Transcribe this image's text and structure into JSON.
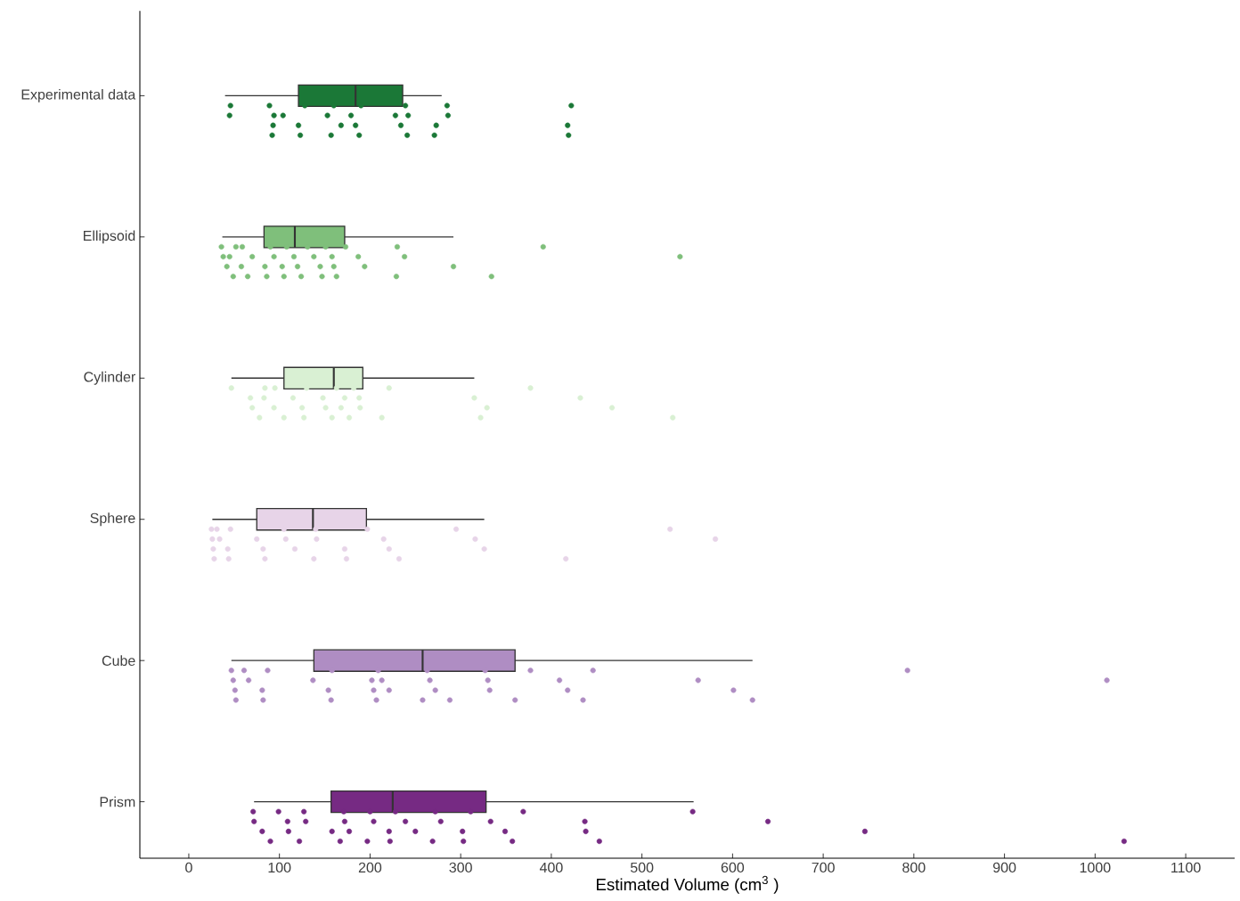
{
  "chart_data": {
    "type": "box",
    "orientation": "horizontal",
    "xlabel": "Estimated Volume (cm$^{3}$ )",
    "categories": [
      "Experimental  data",
      "Ellipsoid",
      "Cylinder",
      "Sphere",
      "Cube",
      "Prism"
    ],
    "colors": [
      "#1b7837",
      "#7fbf7b",
      "#d9f0d3",
      "#e7d4e8",
      "#af8dc3",
      "#762a83"
    ],
    "boxes": [
      {
        "low": 40,
        "q1": 121,
        "median": 184,
        "q3": 236,
        "high": 279
      },
      {
        "low": 37,
        "q1": 83,
        "median": 117,
        "q3": 172,
        "high": 292
      },
      {
        "low": 47,
        "q1": 105,
        "median": 160,
        "q3": 192,
        "high": 315
      },
      {
        "low": 26,
        "q1": 75,
        "median": 137,
        "q3": 196,
        "high": 326
      },
      {
        "low": 47,
        "q1": 138,
        "median": 258,
        "q3": 360,
        "high": 622
      },
      {
        "low": 72,
        "q1": 157,
        "median": 225,
        "q3": 328,
        "high": 557
      }
    ],
    "series": [
      {
        "type": "scatter",
        "color": "#1b7837",
        "x": [
          "Experimental  data",
          "Experimental  data",
          "Experimental  data",
          "Experimental  data",
          "Experimental  data",
          "Experimental  data",
          "Experimental  data",
          "Experimental  data",
          "Experimental  data",
          "Experimental  data",
          "Experimental  data",
          "Experimental  data",
          "Experimental  data",
          "Experimental  data",
          "Experimental  data",
          "Experimental  data",
          "Experimental  data",
          "Experimental  data",
          "Experimental  data",
          "Experimental  data",
          "Experimental  data",
          "Experimental  data",
          "Experimental  data",
          "Experimental  data",
          "Experimental  data",
          "Experimental  data",
          "Experimental  data",
          "Experimental  data",
          "Experimental  data",
          "Experimental  data"
        ],
        "values": [
          46,
          45,
          93,
          92,
          89,
          104,
          121,
          123,
          128,
          153,
          168,
          157,
          160,
          179,
          184,
          188,
          190,
          228,
          234,
          241,
          239,
          242,
          273,
          271,
          285,
          286,
          418,
          419,
          422,
          94
        ]
      },
      {
        "type": "scatter",
        "color": "#7fbf7b",
        "x": [
          "Ellipsoid",
          "Ellipsoid",
          "Ellipsoid",
          "Ellipsoid",
          "Ellipsoid",
          "Ellipsoid",
          "Ellipsoid",
          "Ellipsoid",
          "Ellipsoid",
          "Ellipsoid",
          "Ellipsoid",
          "Ellipsoid",
          "Ellipsoid",
          "Ellipsoid",
          "Ellipsoid",
          "Ellipsoid",
          "Ellipsoid",
          "Ellipsoid",
          "Ellipsoid",
          "Ellipsoid",
          "Ellipsoid",
          "Ellipsoid",
          "Ellipsoid",
          "Ellipsoid",
          "Ellipsoid",
          "Ellipsoid",
          "Ellipsoid",
          "Ellipsoid",
          "Ellipsoid",
          "Ellipsoid",
          "Ellipsoid",
          "Ellipsoid",
          "Ellipsoid",
          "Ellipsoid",
          "Ellipsoid",
          "Ellipsoid",
          "Ellipsoid",
          "Ellipsoid"
        ],
        "values": [
          36,
          38,
          42,
          49,
          52,
          45,
          58,
          65,
          59,
          70,
          84,
          86,
          90,
          94,
          103,
          105,
          108,
          116,
          120,
          124,
          131,
          138,
          145,
          147,
          151,
          158,
          160,
          163,
          173,
          187,
          194,
          229,
          230,
          238,
          292,
          334,
          391,
          542
        ]
      },
      {
        "type": "scatter",
        "color": "#d9f0d3",
        "x": [
          "Cylinder",
          "Cylinder",
          "Cylinder",
          "Cylinder",
          "Cylinder",
          "Cylinder",
          "Cylinder",
          "Cylinder",
          "Cylinder",
          "Cylinder",
          "Cylinder",
          "Cylinder",
          "Cylinder",
          "Cylinder",
          "Cylinder",
          "Cylinder",
          "Cylinder",
          "Cylinder",
          "Cylinder",
          "Cylinder",
          "Cylinder",
          "Cylinder",
          "Cylinder",
          "Cylinder",
          "Cylinder",
          "Cylinder",
          "Cylinder",
          "Cylinder",
          "Cylinder",
          "Cylinder",
          "Cylinder",
          "Cylinder"
        ],
        "values": [
          47,
          68,
          70,
          78,
          84,
          83,
          94,
          105,
          95,
          115,
          125,
          127,
          130,
          148,
          151,
          158,
          163,
          172,
          168,
          177,
          182,
          188,
          189,
          213,
          221,
          315,
          329,
          322,
          377,
          432,
          467,
          534
        ]
      },
      {
        "type": "scatter",
        "color": "#e7d4e8",
        "x": [
          "Sphere",
          "Sphere",
          "Sphere",
          "Sphere",
          "Sphere",
          "Sphere",
          "Sphere",
          "Sphere",
          "Sphere",
          "Sphere",
          "Sphere",
          "Sphere",
          "Sphere",
          "Sphere",
          "Sphere",
          "Sphere",
          "Sphere",
          "Sphere",
          "Sphere",
          "Sphere",
          "Sphere",
          "Sphere",
          "Sphere",
          "Sphere",
          "Sphere",
          "Sphere",
          "Sphere",
          "Sphere",
          "Sphere",
          "Sphere"
        ],
        "values": [
          25,
          26,
          27,
          28,
          31,
          34,
          43,
          44,
          46,
          75,
          82,
          84,
          105,
          107,
          117,
          138,
          140,
          141,
          172,
          174,
          197,
          215,
          221,
          232,
          295,
          316,
          326,
          416,
          531,
          581
        ]
      },
      {
        "type": "scatter",
        "color": "#af8dc3",
        "x": [
          "Cube",
          "Cube",
          "Cube",
          "Cube",
          "Cube",
          "Cube",
          "Cube",
          "Cube",
          "Cube",
          "Cube",
          "Cube",
          "Cube",
          "Cube",
          "Cube",
          "Cube",
          "Cube",
          "Cube",
          "Cube",
          "Cube",
          "Cube",
          "Cube",
          "Cube",
          "Cube",
          "Cube",
          "Cube",
          "Cube",
          "Cube",
          "Cube",
          "Cube",
          "Cube",
          "Cube",
          "Cube",
          "Cube",
          "Cube",
          "Cube",
          "Cube",
          "Cube",
          "Cube"
        ],
        "values": [
          47,
          49,
          51,
          52,
          61,
          66,
          81,
          82,
          87,
          137,
          154,
          157,
          158,
          202,
          204,
          207,
          209,
          213,
          221,
          258,
          263,
          266,
          272,
          288,
          327,
          330,
          332,
          360,
          377,
          409,
          418,
          435,
          446,
          562,
          601,
          622,
          793,
          1013
        ]
      },
      {
        "type": "scatter",
        "color": "#762a83",
        "x": [
          "Prism",
          "Prism",
          "Prism",
          "Prism",
          "Prism",
          "Prism",
          "Prism",
          "Prism",
          "Prism",
          "Prism",
          "Prism",
          "Prism",
          "Prism",
          "Prism",
          "Prism",
          "Prism",
          "Prism",
          "Prism",
          "Prism",
          "Prism",
          "Prism",
          "Prism",
          "Prism",
          "Prism",
          "Prism",
          "Prism",
          "Prism",
          "Prism",
          "Prism",
          "Prism",
          "Prism",
          "Prism",
          "Prism",
          "Prism",
          "Prism",
          "Prism",
          "Prism",
          "Prism",
          "Prism",
          "Prism"
        ],
        "values": [
          71,
          72,
          81,
          90,
          99,
          109,
          110,
          122,
          127,
          129,
          158,
          167,
          171,
          172,
          177,
          197,
          200,
          204,
          221,
          222,
          228,
          239,
          250,
          269,
          272,
          278,
          302,
          303,
          311,
          333,
          349,
          357,
          369,
          437,
          438,
          453,
          556,
          639,
          746,
          1032
        ]
      }
    ],
    "xlim": [
      -54,
      1154
    ],
    "xticks": [
      0,
      100,
      200,
      300,
      400,
      500,
      600,
      700,
      800,
      900,
      1000,
      1100
    ]
  }
}
